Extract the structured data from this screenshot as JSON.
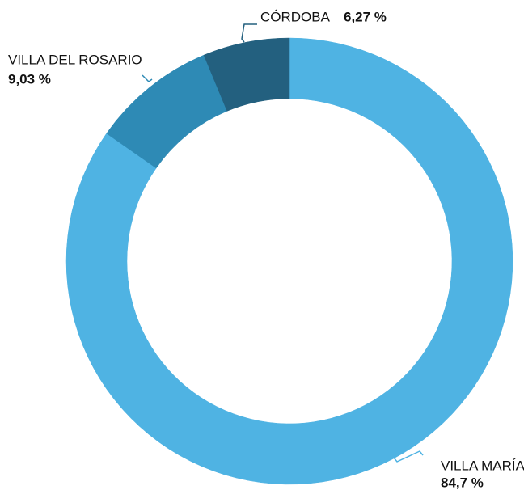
{
  "chart_data": {
    "type": "donut",
    "labels": [
      "VILLA MARÍA",
      "VILLA DEL ROSARIO",
      "CÓRDOBA"
    ],
    "values": [
      84.7,
      9.03,
      6.27
    ],
    "value_labels": [
      "84,7 %",
      "9,03 %",
      "6,27 %"
    ],
    "colors": [
      "#4fb3e3",
      "#2e8ab5",
      "#23607f"
    ]
  }
}
